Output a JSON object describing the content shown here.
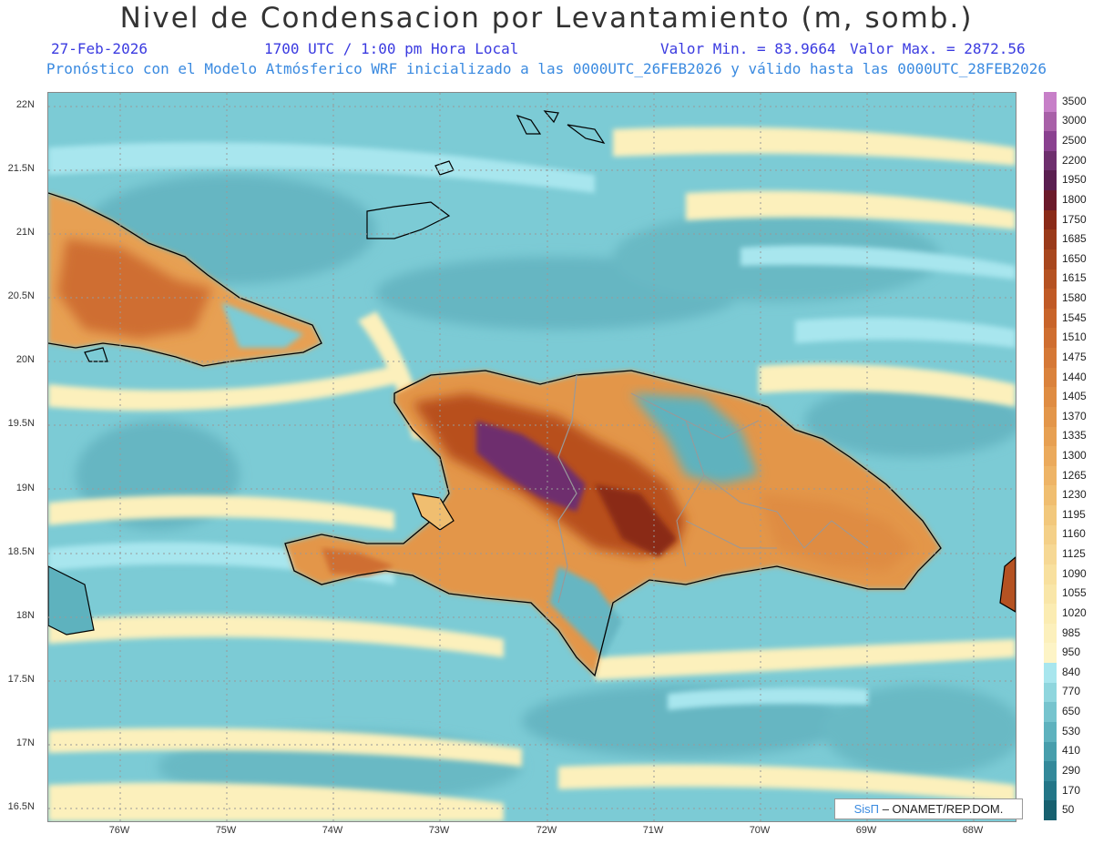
{
  "header": {
    "title": "Nivel de Condensacion por Levantamiento (m, somb.)",
    "date": "27-Feb-2026",
    "time": "1700 UTC / 1:00 pm Hora Local",
    "valmin": "Valor Min. = 83.9664",
    "valmax": "Valor Max. = 2872.56",
    "subtitle": "Pronóstico con el Modelo Atmósferico WRF inicializado a las 0000UTC_26FEB2026 y válido hasta las  0000UTC_28FEB2026"
  },
  "axes": {
    "lat_labels": [
      "22N",
      "21.5N",
      "21N",
      "20.5N",
      "20N",
      "19.5N",
      "19N",
      "18.5N",
      "18N",
      "17.5N",
      "17N",
      "16.5N"
    ],
    "lon_labels": [
      "76W",
      "75W",
      "74W",
      "73W",
      "72W",
      "71W",
      "70W",
      "69W",
      "68W"
    ]
  },
  "credit": {
    "sis": "SisΠ",
    "org": "– ONAMET/REP.DOM."
  },
  "legend": {
    "levels": [
      "3500",
      "3000",
      "2500",
      "2200",
      "1950",
      "1800",
      "1750",
      "1685",
      "1650",
      "1615",
      "1580",
      "1545",
      "1510",
      "1475",
      "1440",
      "1405",
      "1370",
      "1335",
      "1300",
      "1265",
      "1230",
      "1195",
      "1160",
      "1125",
      "1090",
      "1055",
      "1020",
      "985",
      "950",
      "840",
      "770",
      "650",
      "530",
      "410",
      "290",
      "170",
      "50"
    ],
    "colors": [
      "#c77fc8",
      "#a860a8",
      "#8a4190",
      "#6e2f6e",
      "#5a1f50",
      "#6b1a2a",
      "#8a2a18",
      "#9a3a1a",
      "#a8471e",
      "#b55222",
      "#c05a26",
      "#c8642a",
      "#cf6e30",
      "#d57836",
      "#da823c",
      "#df8c42",
      "#e3964a",
      "#e7a052",
      "#ebaa5c",
      "#eeb466",
      "#f0be70",
      "#f2c87c",
      "#f4d088",
      "#f6d894",
      "#f8e09e",
      "#f9e6a8",
      "#fbecb2",
      "#fcf0bc",
      "#fdf4c6",
      "#a8e6ee",
      "#8fd6de",
      "#76c4ce",
      "#5eb2be",
      "#479eac",
      "#33899a",
      "#237688",
      "#17606f"
    ]
  }
}
